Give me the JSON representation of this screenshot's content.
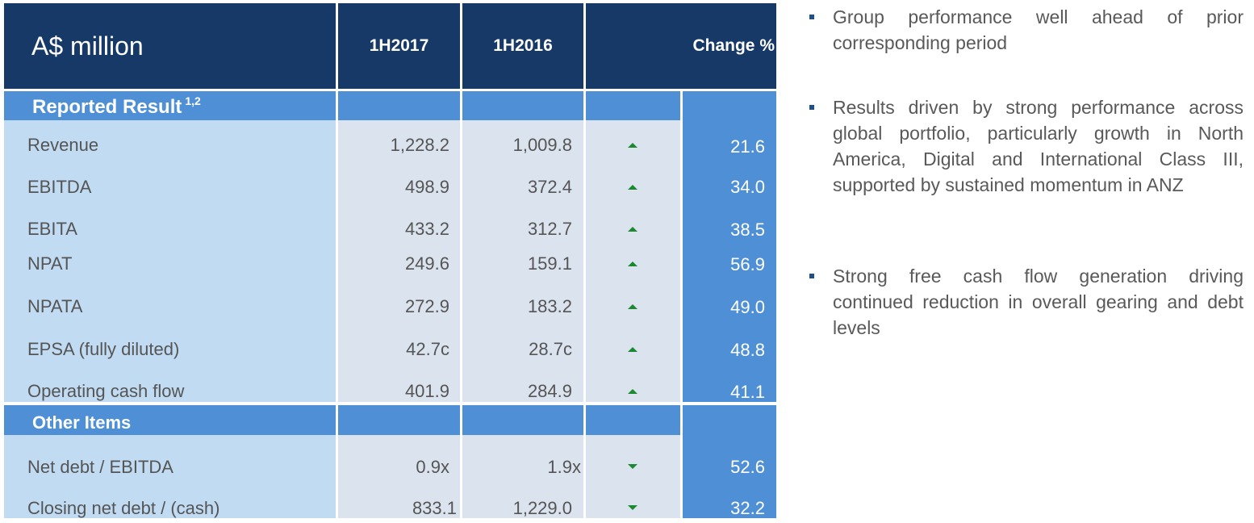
{
  "table": {
    "header": {
      "title": "A$ million",
      "col1": "1H2017",
      "col2": "1H2016",
      "col_change": "Change %"
    },
    "section1": {
      "label": "Reported Result",
      "sup": "1,2"
    },
    "rows1": [
      {
        "label": "Revenue",
        "v2017": "1,228.2",
        "v2016": "1,009.8",
        "direction": "up",
        "change": "21.6"
      },
      {
        "label": "EBITDA",
        "v2017": "498.9",
        "v2016": "372.4",
        "direction": "up",
        "change": "34.0"
      },
      {
        "label": "EBITA",
        "v2017": "433.2",
        "v2016": "312.7",
        "direction": "up",
        "change": "38.5"
      },
      {
        "label": "NPAT",
        "v2017": "249.6",
        "v2016": "159.1",
        "direction": "up",
        "change": "56.9"
      },
      {
        "label": "NPATA",
        "v2017": "272.9",
        "v2016": "183.2",
        "direction": "up",
        "change": "49.0"
      },
      {
        "label": "EPSA (fully diluted)",
        "v2017": "42.7c",
        "v2016": "28.7c",
        "direction": "up",
        "change": "48.8"
      },
      {
        "label": "Operating cash flow",
        "v2017": "401.9",
        "v2016": "284.9",
        "direction": "up",
        "change": "41.1"
      }
    ],
    "section2": {
      "label": "Other Items"
    },
    "rows2": [
      {
        "label": "Net debt / EBITDA",
        "v2017": "0.9x",
        "v2016": "1.9x",
        "direction": "down",
        "change": "52.6"
      },
      {
        "label": "Closing net debt / (cash)",
        "v2017": "833.1",
        "v2016": "1,229.0",
        "direction": "down",
        "change": "32.2"
      }
    ]
  },
  "bullets": [
    "Group performance well ahead of prior corresponding period",
    "Results driven by strong performance across global portfolio, particularly growth in North America, Digital and International Class III, supported by sustained momentum in ANZ",
    "Strong free cash flow generation driving continued reduction in overall gearing and debt levels"
  ],
  "colors": {
    "header": "#173968",
    "section": "#4f8fd6",
    "label_col": "#c1dbf2",
    "data_col": "#dbe3ee",
    "arrow": "#1a8a2e"
  }
}
